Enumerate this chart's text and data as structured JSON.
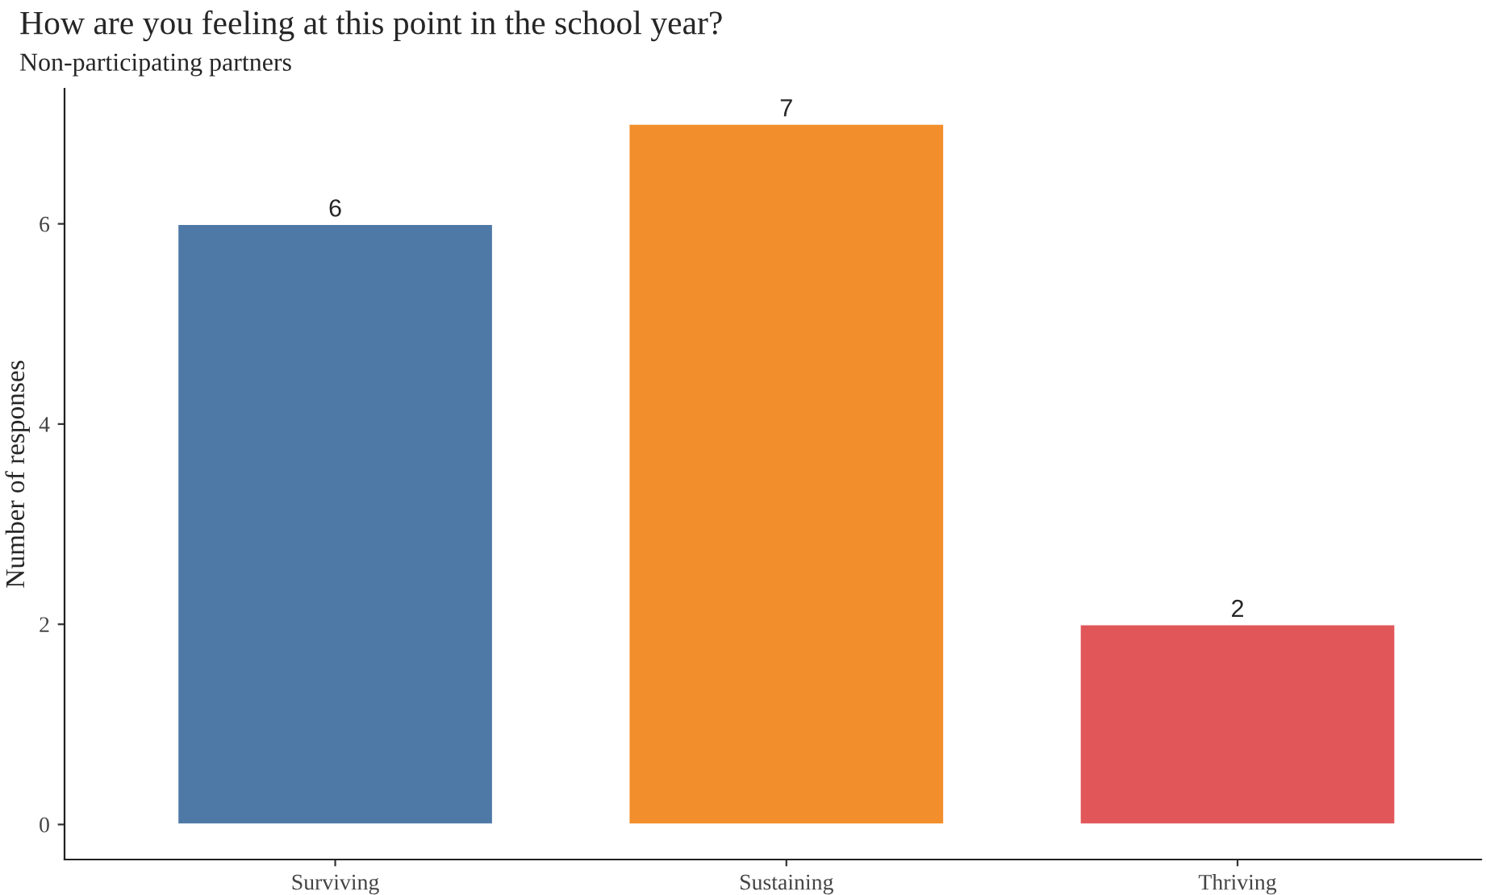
{
  "chart_data": {
    "type": "bar",
    "title": "How are you feeling at this point in the school year?",
    "subtitle": "Non-participating partners",
    "ylabel": "Number of responses",
    "categories": [
      "Surviving",
      "Sustaining",
      "Thriving"
    ],
    "values": [
      6,
      7,
      2
    ],
    "colors": [
      "#4e79a7",
      "#f28e2b",
      "#e15759"
    ],
    "ylim": [
      -0.35,
      7.35
    ],
    "yticks": [
      0,
      2,
      4,
      6
    ],
    "data_labels": true,
    "grid": false,
    "legend": false
  }
}
